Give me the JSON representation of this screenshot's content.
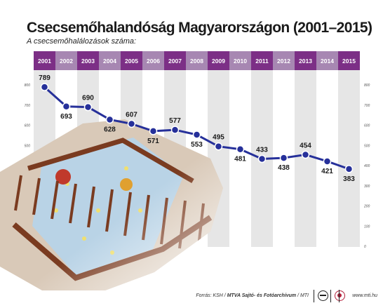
{
  "title": "Csecsemőhalandóság Magyarországon (2001–2015)",
  "subtitle": "A csecsemőhalálozások száma:",
  "footer": {
    "source_prefix": "Forrás: KSH / ",
    "source_bold": "MTVA Sajtó- és Fotóarchívum",
    "source_suffix": " / MTI",
    "url": "www.mti.hu"
  },
  "colors": {
    "line": "#26309a",
    "header_dark": "#7c2f86",
    "header_light": "#a787b2",
    "stripe": "#e6e6e6",
    "crib": "#7a3b20"
  },
  "chart_data": {
    "type": "line",
    "categories": [
      "2001",
      "2002",
      "2003",
      "2004",
      "2005",
      "2006",
      "2007",
      "2008",
      "2009",
      "2010",
      "2011",
      "2012",
      "2013",
      "2014",
      "2015"
    ],
    "series": [
      {
        "values": [
          789,
          693,
          690,
          628,
          607,
          571,
          577,
          553,
          495,
          481,
          433,
          438,
          454,
          421,
          383
        ]
      }
    ],
    "y_ticks": [
      0,
      100,
      200,
      300,
      400,
      500,
      600,
      700,
      800
    ],
    "ylim": [
      0,
      800
    ],
    "grid": false,
    "image": "photo of an empty wooden baby crib"
  }
}
